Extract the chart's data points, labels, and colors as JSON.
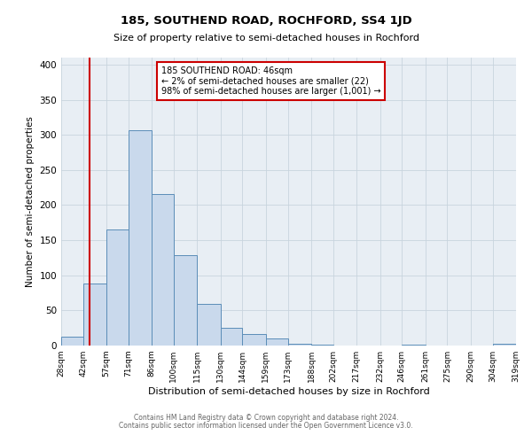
{
  "title": "185, SOUTHEND ROAD, ROCHFORD, SS4 1JD",
  "subtitle": "Size of property relative to semi-detached houses in Rochford",
  "xlabel": "Distribution of semi-detached houses by size in Rochford",
  "ylabel": "Number of semi-detached properties",
  "bin_edges": [
    28,
    42,
    57,
    71,
    86,
    100,
    115,
    130,
    144,
    159,
    173,
    188,
    202,
    217,
    232,
    246,
    261,
    275,
    290,
    304,
    319
  ],
  "bin_counts": [
    13,
    88,
    165,
    306,
    216,
    129,
    59,
    25,
    17,
    10,
    3,
    1,
    0,
    0,
    0,
    1,
    0,
    0,
    0,
    2
  ],
  "bar_facecolor": "#c9d9ec",
  "bar_edgecolor": "#5b8db8",
  "property_size": 46,
  "vline_color": "#cc0000",
  "annotation_line1": "185 SOUTHEND ROAD: 46sqm",
  "annotation_line2": "← 2% of semi-detached houses are smaller (22)",
  "annotation_line3": "98% of semi-detached houses are larger (1,001) →",
  "annotation_box_edgecolor": "#cc0000",
  "ylim": [
    0,
    410
  ],
  "yticks": [
    0,
    50,
    100,
    150,
    200,
    250,
    300,
    350,
    400
  ],
  "footer1": "Contains HM Land Registry data © Crown copyright and database right 2024.",
  "footer2": "Contains public sector information licensed under the Open Government Licence v3.0.",
  "tick_labels": [
    "28sqm",
    "42sqm",
    "57sqm",
    "71sqm",
    "86sqm",
    "100sqm",
    "115sqm",
    "130sqm",
    "144sqm",
    "159sqm",
    "173sqm",
    "188sqm",
    "202sqm",
    "217sqm",
    "232sqm",
    "246sqm",
    "261sqm",
    "275sqm",
    "290sqm",
    "304sqm",
    "319sqm"
  ],
  "ax_background_color": "#e8eef4",
  "fig_background_color": "#ffffff",
  "title_fontsize": 9.5,
  "subtitle_fontsize": 8,
  "ylabel_fontsize": 7.5,
  "xlabel_fontsize": 8,
  "tick_fontsize": 6.5,
  "ytick_fontsize": 7.5,
  "footer_fontsize": 5.5,
  "annotation_fontsize": 7
}
